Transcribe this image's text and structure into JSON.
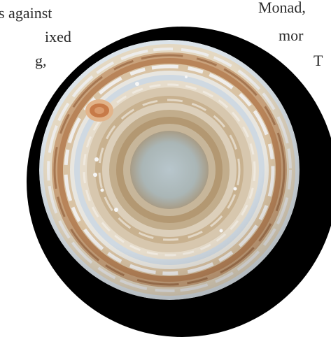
{
  "text_fragments": {
    "left": [
      "s against",
      "ixed",
      "g,"
    ],
    "right": [
      "Monad,",
      "mor",
      "T"
    ]
  },
  "image": {
    "subject": "planet-pole-view",
    "colors": {
      "mask": "#000000",
      "background": "#ffffff",
      "ice": "#d6dfe8",
      "cream": "#e8dcc6",
      "tan": "#c9a178",
      "rust": "#a8623a",
      "pale_center": "#aebcc2"
    }
  }
}
